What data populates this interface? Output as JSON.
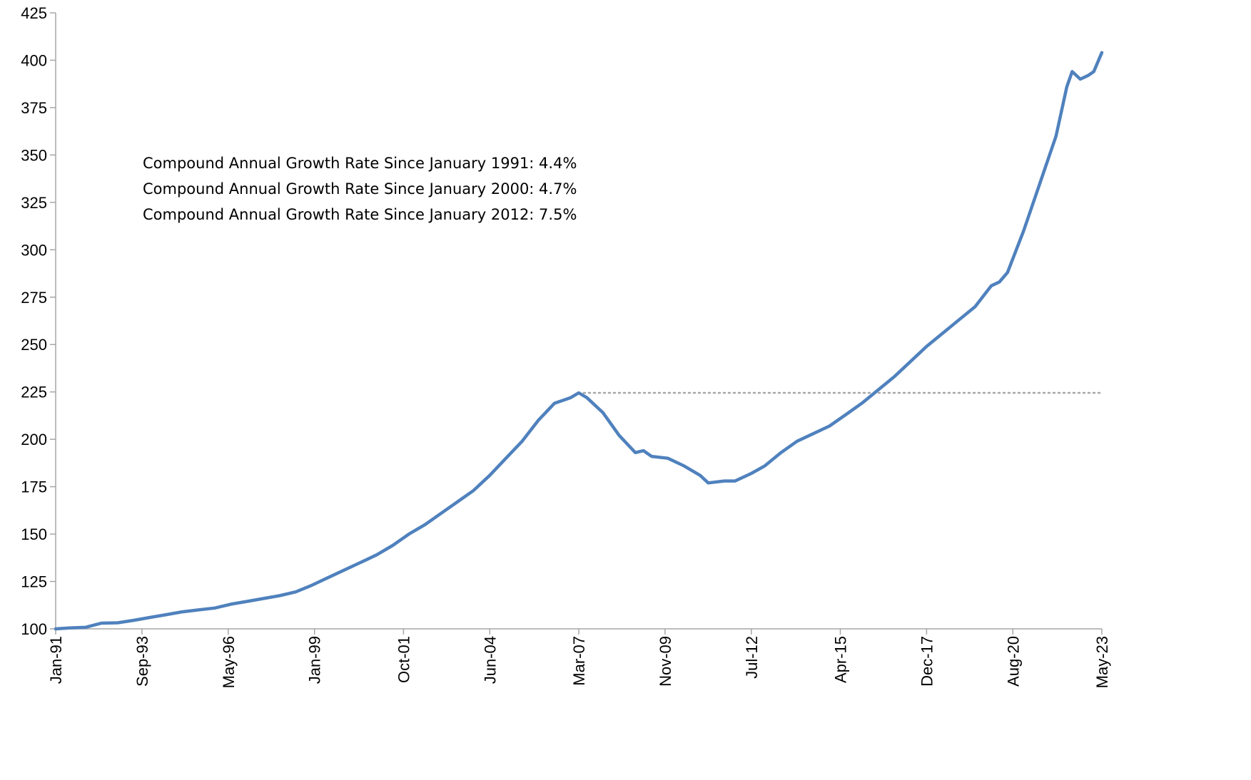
{
  "chart_data": {
    "type": "line",
    "title": "",
    "xlabel": "",
    "ylabel": "",
    "ylim": [
      100,
      425
    ],
    "yticks": [
      100,
      125,
      150,
      175,
      200,
      225,
      250,
      275,
      300,
      325,
      350,
      375,
      400,
      425
    ],
    "xlim": [
      "1991-01",
      "2023-05"
    ],
    "xtick_labels": [
      "Jan-91",
      "Sep-93",
      "May-96",
      "Jan-99",
      "Oct-01",
      "Jun-04",
      "Mar-07",
      "Nov-09",
      "Jul-12",
      "Apr-15",
      "Dec-17",
      "Aug-20",
      "May-23"
    ],
    "xtick_dates": [
      "1991-01",
      "1993-09",
      "1996-05",
      "1999-01",
      "2001-10",
      "2004-06",
      "2007-03",
      "2009-11",
      "2012-07",
      "2015-04",
      "2017-12",
      "2020-08",
      "2023-05"
    ],
    "grid": false,
    "legend": "none",
    "series": [
      {
        "color": "#4f81bd",
        "points": [
          [
            "1991-01",
            100
          ],
          [
            "1991-06",
            100.5
          ],
          [
            "1991-12",
            100.8
          ],
          [
            "1992-06",
            103
          ],
          [
            "1992-12",
            103.2
          ],
          [
            "1993-06",
            104.5
          ],
          [
            "1993-12",
            106
          ],
          [
            "1994-06",
            107.5
          ],
          [
            "1994-12",
            109
          ],
          [
            "1995-06",
            110
          ],
          [
            "1995-12",
            111
          ],
          [
            "1996-06",
            113
          ],
          [
            "1996-12",
            114.5
          ],
          [
            "1997-06",
            116
          ],
          [
            "1997-12",
            117.5
          ],
          [
            "1998-06",
            119.5
          ],
          [
            "1998-12",
            123
          ],
          [
            "1999-06",
            127
          ],
          [
            "1999-12",
            131
          ],
          [
            "2000-06",
            135
          ],
          [
            "2000-12",
            139
          ],
          [
            "2001-06",
            144
          ],
          [
            "2001-12",
            150
          ],
          [
            "2002-06",
            155
          ],
          [
            "2002-12",
            161
          ],
          [
            "2003-06",
            167
          ],
          [
            "2003-12",
            173
          ],
          [
            "2004-06",
            181
          ],
          [
            "2004-12",
            190
          ],
          [
            "2005-06",
            199
          ],
          [
            "2005-12",
            210
          ],
          [
            "2006-06",
            219
          ],
          [
            "2006-12",
            222
          ],
          [
            "2007-03",
            224.5
          ],
          [
            "2007-06",
            222
          ],
          [
            "2007-12",
            214
          ],
          [
            "2008-06",
            202
          ],
          [
            "2008-12",
            193
          ],
          [
            "2009-03",
            194
          ],
          [
            "2009-06",
            191
          ],
          [
            "2009-12",
            190
          ],
          [
            "2010-06",
            186
          ],
          [
            "2010-12",
            181
          ],
          [
            "2011-03",
            177
          ],
          [
            "2011-09",
            178
          ],
          [
            "2012-01",
            178
          ],
          [
            "2012-07",
            182
          ],
          [
            "2012-12",
            186
          ],
          [
            "2013-06",
            193
          ],
          [
            "2013-12",
            199
          ],
          [
            "2014-06",
            203
          ],
          [
            "2014-12",
            207
          ],
          [
            "2015-06",
            213
          ],
          [
            "2015-12",
            219
          ],
          [
            "2016-06",
            226
          ],
          [
            "2016-12",
            233
          ],
          [
            "2017-06",
            241
          ],
          [
            "2017-12",
            249
          ],
          [
            "2018-06",
            256
          ],
          [
            "2018-12",
            263
          ],
          [
            "2019-06",
            270
          ],
          [
            "2019-12",
            281
          ],
          [
            "2020-03",
            283
          ],
          [
            "2020-06",
            288
          ],
          [
            "2020-12",
            310
          ],
          [
            "2021-06",
            335
          ],
          [
            "2021-12",
            360
          ],
          [
            "2022-04",
            386
          ],
          [
            "2022-06",
            394
          ],
          [
            "2022-09",
            390
          ],
          [
            "2022-12",
            392
          ],
          [
            "2023-02",
            394
          ],
          [
            "2023-05",
            404
          ]
        ]
      }
    ],
    "reference_lines": [
      {
        "value": 224.5,
        "from": "2007-03",
        "to": "2023-05",
        "style": "dotted",
        "color": "#a6a6a6"
      }
    ],
    "annotations": [
      "Compound Annual Growth Rate Since January 1991:  4.4%",
      "Compound Annual Growth Rate Since January 2000:  4.7%",
      "Compound Annual Growth Rate Since January 2012:  7.5%"
    ]
  }
}
